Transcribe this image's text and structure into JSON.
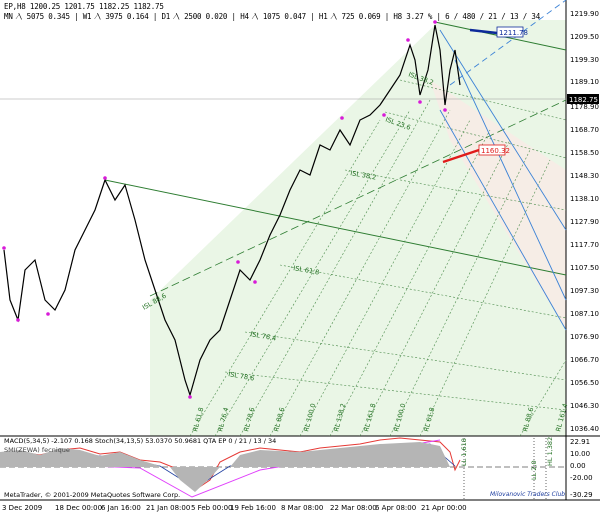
{
  "header": {
    "line1": "EP,H8  1200.25  1201.75  1182.25  1182.75",
    "line2": "MN ⁄\\ 5075   0.345  |  W1 ⁄\\ 3975   0.164  |  D1 ⁄\\ 2500   0.020  |  H4 ⁄\\ 1075   0.047  |  H1 ⁄\\ 725   0.069  |  H8  3.27 %  |  6 / 480 / 21 / 13 / 34"
  },
  "price_axis": {
    "ticks": [
      "1219.90",
      "1209.50",
      "1199.30",
      "1189.10",
      "1178.90",
      "1168.70",
      "1158.50",
      "1148.30",
      "1138.10",
      "1127.90",
      "1117.70",
      "1107.50",
      "1097.30",
      "1087.10",
      "1076.90",
      "1066.70",
      "1056.50",
      "1046.30",
      "1036.40"
    ],
    "current_price": "1182.75"
  },
  "price_boxes": {
    "upper": "1211.78",
    "lower": "1160.32"
  },
  "isl_labels": [
    "ISL 23,6",
    "ISL 38,2",
    "ISL 61,8",
    "ISL 76,4",
    "ISL 78,6",
    "ISL 88,6",
    "ISL 38,2"
  ],
  "rl_labels": [
    "RL 61,8",
    "RL 76,4",
    "RL 78,6",
    "RL 88,6",
    "RL 100,0",
    "RL 138,2",
    "RL 161,8",
    "RL 100,0",
    "RL 61,8",
    "RL 88,6",
    "RL 161,4"
  ],
  "indicator": {
    "label": "MACD(5,34,5)  -2.107  0.168   Stoch(34,13,5)  53.0370  50.9681   QTA EP  0 / 21 / 13 / 34",
    "sub_label": "SMI(ZEWA) fecnique",
    "ticks": [
      "22.91",
      "10.00",
      "0.00",
      "-20.00",
      "-30.29"
    ],
    "lines": [
      "LL 1,618",
      "LL 2,0",
      "HL 1,382"
    ]
  },
  "footer": {
    "copyright": "MetaTrader, © 2001-2009 MetaQuotes Software Corp.",
    "signature": "Milovanovic Traders Club"
  },
  "time_axis": [
    "3 Dec 2009",
    "18 Dec 00:00",
    "6 Jan 16:00",
    "21 Jan 08:00",
    "5 Feb 00:00",
    "19 Feb 16:00",
    "8 Mar 08:00",
    "22 Mar 08:00",
    "6 Apr 08:00",
    "21 Apr 00:00"
  ]
}
